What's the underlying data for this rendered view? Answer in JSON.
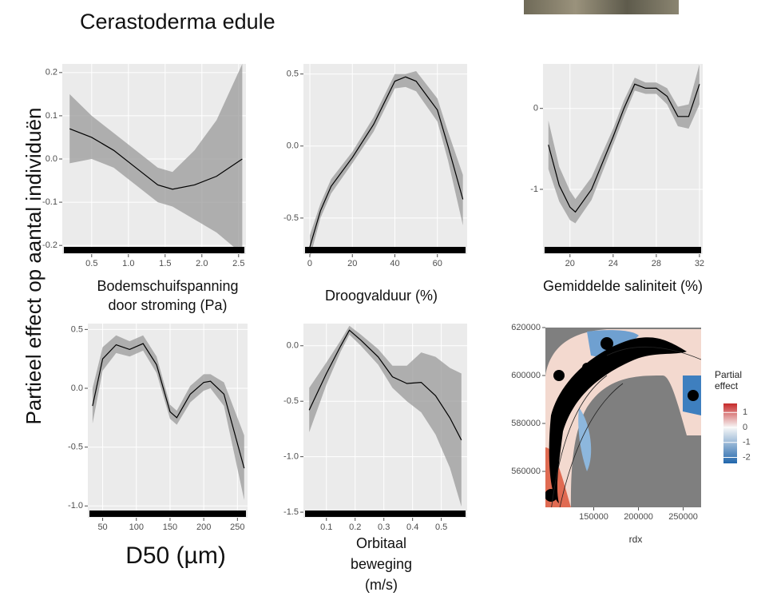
{
  "title": "Cerastoderma edule",
  "y_label": "Partieel effect op aantal individuën",
  "chart_data": [
    {
      "type": "line",
      "x_label": "Bodemschuifspanning door stroming (Pa)",
      "x": [
        0.2,
        0.5,
        0.8,
        1.1,
        1.4,
        1.6,
        1.9,
        2.2,
        2.55
      ],
      "values": [
        0.07,
        0.05,
        0.02,
        -0.02,
        -0.06,
        -0.07,
        -0.06,
        -0.04,
        0.0
      ],
      "lower": [
        -0.01,
        0.0,
        -0.02,
        -0.06,
        -0.1,
        -0.11,
        -0.14,
        -0.17,
        -0.22
      ],
      "upper": [
        0.15,
        0.1,
        0.06,
        0.02,
        -0.02,
        -0.03,
        0.02,
        0.09,
        0.22
      ],
      "xlim": [
        0.1,
        2.6
      ],
      "ylim": [
        -0.22,
        0.22
      ],
      "xticks": [
        0.5,
        {
          "value": 1,
          "label": "1.0"
        },
        1.5,
        {
          "value": 2,
          "label": "2.0"
        },
        2.5
      ],
      "yticks": [
        0.2,
        0.1,
        {
          "value": 0,
          "label": "0.0"
        },
        -0.1,
        -0.2
      ]
    },
    {
      "type": "line",
      "x_label": "Droogvalduur (%)",
      "x": [
        0,
        5,
        10,
        20,
        30,
        40,
        45,
        50,
        60,
        65,
        72
      ],
      "values": [
        -0.7,
        -0.45,
        -0.28,
        -0.08,
        0.15,
        0.45,
        0.48,
        0.45,
        0.25,
        0.0,
        -0.37
      ],
      "lower": [
        -0.78,
        -0.5,
        -0.33,
        -0.12,
        0.1,
        0.4,
        0.41,
        0.38,
        0.17,
        -0.1,
        -0.55
      ],
      "upper": [
        -0.62,
        -0.4,
        -0.23,
        -0.04,
        0.2,
        0.5,
        0.5,
        0.52,
        0.33,
        0.1,
        -0.2
      ],
      "xlim": [
        -3,
        74
      ],
      "ylim": [
        -0.75,
        0.57
      ],
      "xticks": [
        0,
        20,
        40,
        60
      ],
      "yticks": [
        0.5,
        {
          "value": 0,
          "label": "0.0"
        },
        -0.5
      ]
    },
    {
      "type": "line",
      "x_label": "Gemiddelde saliniteit (%)",
      "x": [
        18,
        19,
        20,
        20.5,
        22,
        24,
        25,
        26,
        27,
        28,
        29,
        30,
        31,
        32
      ],
      "values": [
        -0.45,
        -0.95,
        -1.22,
        -1.28,
        -1.0,
        -0.35,
        0.0,
        0.3,
        0.25,
        0.25,
        0.15,
        -0.1,
        -0.1,
        0.3
      ],
      "lower": [
        -0.75,
        -1.15,
        -1.38,
        -1.42,
        -1.13,
        -0.45,
        -0.1,
        0.22,
        0.18,
        0.18,
        0.05,
        -0.22,
        -0.25,
        0.05
      ],
      "upper": [
        -0.15,
        -0.72,
        -1.02,
        -1.12,
        -0.85,
        -0.25,
        0.1,
        0.38,
        0.32,
        0.32,
        0.25,
        0.02,
        0.05,
        0.55
      ],
      "xlim": [
        17.5,
        32.3
      ],
      "ylim": [
        -1.8,
        0.55
      ],
      "xticks": [
        20,
        24,
        28,
        32
      ],
      "yticks": [
        0,
        -1
      ]
    },
    {
      "type": "line",
      "x_label": "D50 (µm)",
      "x": [
        35,
        50,
        70,
        90,
        110,
        130,
        150,
        160,
        180,
        200,
        210,
        230,
        260
      ],
      "values": [
        -0.15,
        0.25,
        0.37,
        0.33,
        0.38,
        0.2,
        -0.2,
        -0.25,
        -0.05,
        0.05,
        0.06,
        -0.05,
        -0.68
      ],
      "lower": [
        -0.3,
        0.15,
        0.3,
        0.27,
        0.32,
        0.13,
        -0.26,
        -0.31,
        -0.12,
        -0.02,
        0.0,
        -0.15,
        -0.95
      ],
      "upper": [
        0.0,
        0.35,
        0.45,
        0.4,
        0.45,
        0.27,
        -0.14,
        -0.19,
        0.02,
        0.12,
        0.12,
        0.05,
        -0.4
      ],
      "xlim": [
        28,
        265
      ],
      "ylim": [
        -1.1,
        0.55
      ],
      "xticks": [
        50,
        100,
        150,
        200,
        250
      ],
      "yticks": [
        0.5,
        {
          "value": 0,
          "label": "0.0"
        },
        -0.5,
        {
          "value": -1,
          "label": "-1.0"
        }
      ]
    },
    {
      "type": "line",
      "x_label": "Orbitaal beweging (m/s)",
      "x": [
        0.04,
        0.1,
        0.15,
        0.18,
        0.22,
        0.28,
        0.33,
        0.38,
        0.43,
        0.48,
        0.53,
        0.57
      ],
      "values": [
        -0.58,
        -0.25,
        0.0,
        0.14,
        0.05,
        -0.1,
        -0.28,
        -0.34,
        -0.33,
        -0.45,
        -0.65,
        -0.85
      ],
      "lower": [
        -0.78,
        -0.35,
        -0.05,
        0.1,
        0.0,
        -0.17,
        -0.38,
        -0.5,
        -0.6,
        -0.8,
        -1.1,
        -1.45
      ],
      "upper": [
        -0.38,
        -0.15,
        0.05,
        0.18,
        0.1,
        -0.03,
        -0.18,
        -0.18,
        -0.06,
        -0.1,
        -0.2,
        -0.25
      ],
      "xlim": [
        0.02,
        0.59
      ],
      "ylim": [
        -1.55,
        0.2
      ],
      "xticks": [
        0.1,
        0.2,
        0.3,
        0.4,
        0.5
      ],
      "yticks": [
        {
          "value": 0,
          "label": "0.0"
        },
        -0.5,
        {
          "value": -1,
          "label": "-1.0"
        },
        -1.5
      ]
    },
    {
      "type": "map",
      "x_label": "rdx",
      "xlim": [
        96000,
        270000
      ],
      "ylim": [
        545000,
        620000
      ],
      "xticks": [
        150000,
        200000,
        250000
      ],
      "yticks": [
        620000,
        600000,
        580000,
        560000
      ],
      "legend_title": "Partial effect",
      "colorlim": [
        -2.4,
        1.6
      ],
      "colorticks": [
        1,
        0,
        -1,
        -2
      ]
    }
  ]
}
